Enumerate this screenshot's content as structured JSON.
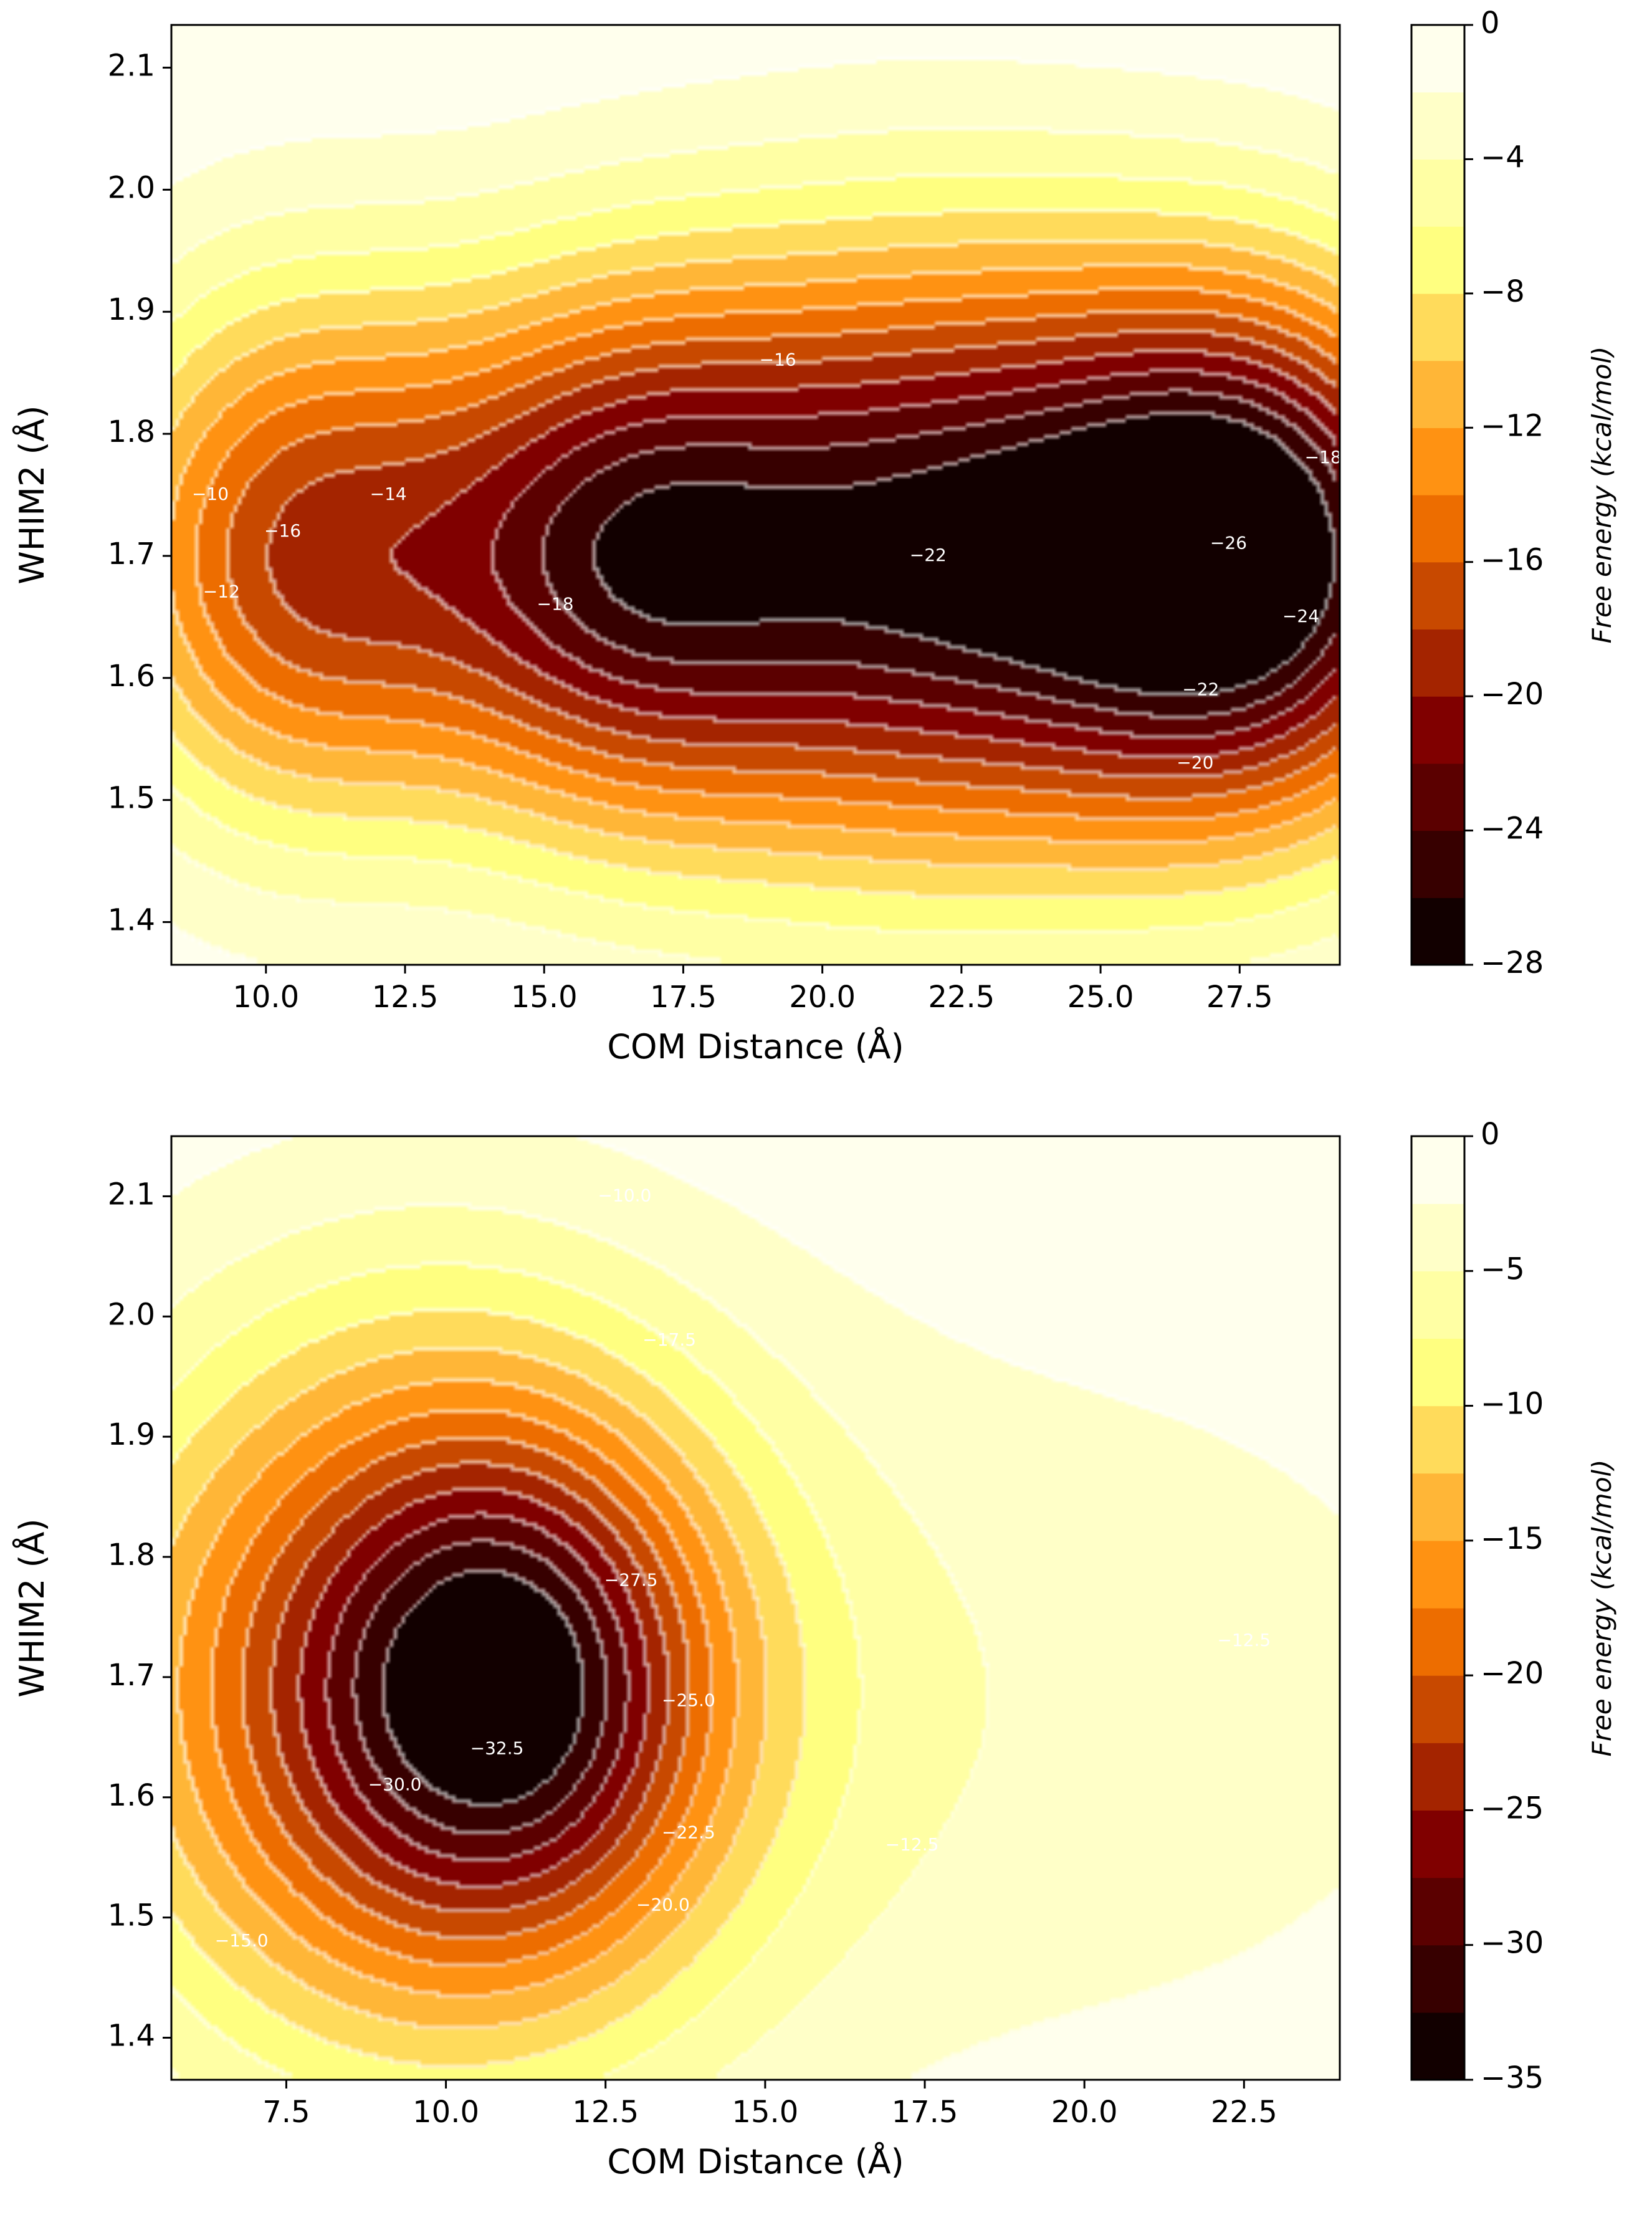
{
  "chart_data": [
    {
      "type": "heatmap",
      "subtype": "filled-contour",
      "title": "",
      "xlabel": "COM Distance (Å)",
      "ylabel": "WHIM2 (Å)",
      "xlim": [
        8.3,
        29.3
      ],
      "ylim": [
        1.365,
        2.135
      ],
      "x_ticks": [
        "10.0",
        "12.5",
        "15.0",
        "17.5",
        "20.0",
        "22.5",
        "25.0",
        "27.5"
      ],
      "y_ticks": [
        "1.4",
        "1.5",
        "1.6",
        "1.7",
        "1.8",
        "1.9",
        "2.0",
        "2.1"
      ],
      "colorbar": {
        "label": "Free energy (kcal/mol)",
        "range": [
          -28,
          0
        ],
        "ticks": [
          "0",
          "−4",
          "−8",
          "−12",
          "−16",
          "−20",
          "−24",
          "−28"
        ],
        "levels": 14,
        "colormap": "afmhot"
      },
      "minima": [
        {
          "x": 10.5,
          "y": 1.7,
          "depth": -17,
          "sx": 2.6,
          "sy": 0.16
        },
        {
          "x": 16.2,
          "y": 1.7,
          "depth": -19,
          "sx": 2.6,
          "sy": 0.16
        },
        {
          "x": 21.8,
          "y": 1.7,
          "depth": -23,
          "sx": 3.4,
          "sy": 0.18
        },
        {
          "x": 27.8,
          "y": 1.7,
          "depth": -27,
          "sx": 2.9,
          "sy": 0.16
        }
      ],
      "contour_labels": [
        {
          "text": "−16",
          "x": 10.3,
          "y": 1.72
        },
        {
          "text": "−14",
          "x": 12.2,
          "y": 1.75
        },
        {
          "text": "−12",
          "x": 9.2,
          "y": 1.67
        },
        {
          "text": "−10",
          "x": 9.0,
          "y": 1.75
        },
        {
          "text": "−18",
          "x": 15.2,
          "y": 1.66
        },
        {
          "text": "−16",
          "x": 19.2,
          "y": 1.86
        },
        {
          "text": "−22",
          "x": 21.9,
          "y": 1.7
        },
        {
          "text": "−26",
          "x": 27.3,
          "y": 1.71
        },
        {
          "text": "−24",
          "x": 28.6,
          "y": 1.65
        },
        {
          "text": "−22",
          "x": 26.8,
          "y": 1.59
        },
        {
          "text": "−20",
          "x": 26.7,
          "y": 1.53
        },
        {
          "text": "−18",
          "x": 29.0,
          "y": 1.78
        }
      ]
    },
    {
      "type": "heatmap",
      "subtype": "filled-contour",
      "title": "",
      "xlabel": "COM Distance (Å)",
      "ylabel": "WHIM2 (Å)",
      "xlim": [
        5.7,
        24.0
      ],
      "ylim": [
        1.365,
        2.15
      ],
      "x_ticks": [
        "7.5",
        "10.0",
        "12.5",
        "15.0",
        "17.5",
        "20.0",
        "22.5"
      ],
      "y_ticks": [
        "1.4",
        "1.5",
        "1.6",
        "1.7",
        "1.8",
        "1.9",
        "2.0",
        "2.1"
      ],
      "colorbar": {
        "label": "Free energy (kcal/mol)",
        "range": [
          -35,
          0
        ],
        "ticks": [
          "0",
          "−5",
          "−10",
          "−15",
          "−20",
          "−25",
          "−30",
          "−35"
        ],
        "levels": 14,
        "colormap": "afmhot"
      },
      "minima": [
        {
          "x": 9.5,
          "y": 1.69,
          "depth": -24,
          "sx": 3.6,
          "sy": 0.22
        },
        {
          "x": 11.2,
          "y": 1.69,
          "depth": -14,
          "sx": 2.0,
          "sy": 0.14
        },
        {
          "x": 19.5,
          "y": 1.68,
          "depth": -4,
          "sx": 6.0,
          "sy": 0.25
        }
      ],
      "contour_labels": [
        {
          "text": "−17.5",
          "x": 13.5,
          "y": 1.98
        },
        {
          "text": "−27.5",
          "x": 12.9,
          "y": 1.78
        },
        {
          "text": "−25.0",
          "x": 13.8,
          "y": 1.68
        },
        {
          "text": "−32.5",
          "x": 10.8,
          "y": 1.64
        },
        {
          "text": "−30.0",
          "x": 9.2,
          "y": 1.61
        },
        {
          "text": "−22.5",
          "x": 13.8,
          "y": 1.57
        },
        {
          "text": "−20.0",
          "x": 13.4,
          "y": 1.51
        },
        {
          "text": "−12.5",
          "x": 17.3,
          "y": 1.56
        },
        {
          "text": "−12.5",
          "x": 22.5,
          "y": 1.73
        },
        {
          "text": "−10.0",
          "x": 12.8,
          "y": 2.1
        },
        {
          "text": "−15.0",
          "x": 6.8,
          "y": 1.48
        }
      ]
    }
  ]
}
